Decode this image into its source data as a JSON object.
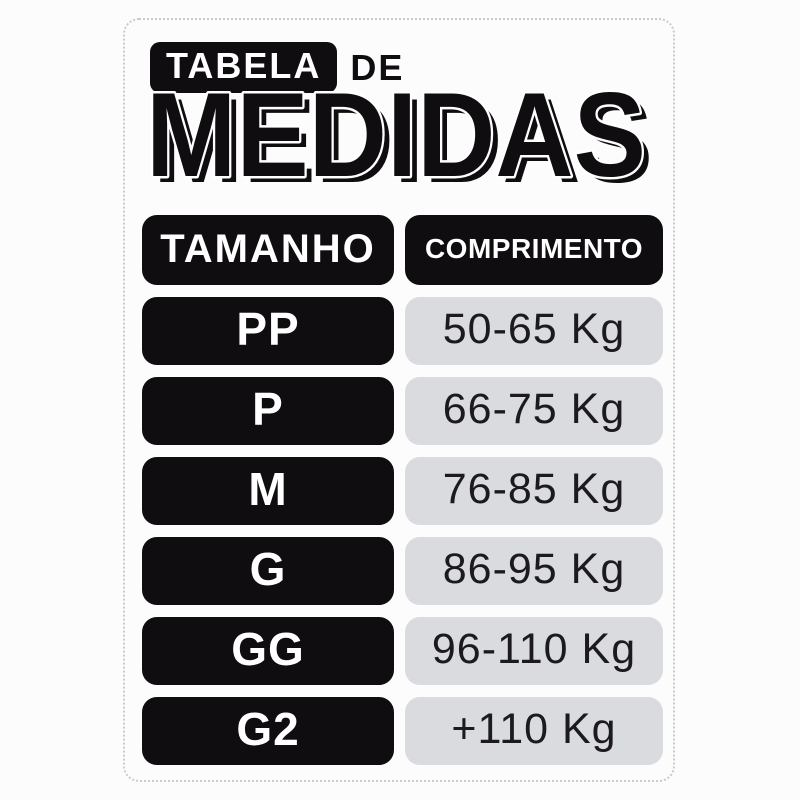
{
  "chart_data": {
    "type": "table",
    "title": "TABELA DE MEDIDAS",
    "columns": [
      "TAMANHO",
      "COMPRIMENTO"
    ],
    "rows": [
      [
        "PP",
        "50-65 Kg"
      ],
      [
        "P",
        "66-75 Kg"
      ],
      [
        "M",
        "76-85 Kg"
      ],
      [
        "G",
        "86-95 Kg"
      ],
      [
        "GG",
        "96-110 Kg"
      ],
      [
        "G2",
        "+110 Kg"
      ]
    ]
  },
  "title": {
    "badge": "TABELA",
    "connector": "DE",
    "main": "MEDIDAS"
  },
  "table": {
    "header": {
      "size": "TAMANHO",
      "weight": "COMPRIMENTO"
    },
    "rows": [
      {
        "size": "PP",
        "weight": "50-65 Kg"
      },
      {
        "size": "P",
        "weight": "66-75 Kg"
      },
      {
        "size": "M",
        "weight": "76-85 Kg"
      },
      {
        "size": "G",
        "weight": "86-95 Kg"
      },
      {
        "size": "GG",
        "weight": "96-110 Kg"
      },
      {
        "size": "G2",
        "weight": "+110 Kg"
      }
    ]
  },
  "colors": {
    "cell_black": "#0f0d10",
    "cell_gray": "#d9dbde",
    "dotted_border": "#c9c9d3",
    "background": "#fcfcfd",
    "text_on_black": "#ffffff",
    "text_on_gray": "#1c1a1d"
  }
}
